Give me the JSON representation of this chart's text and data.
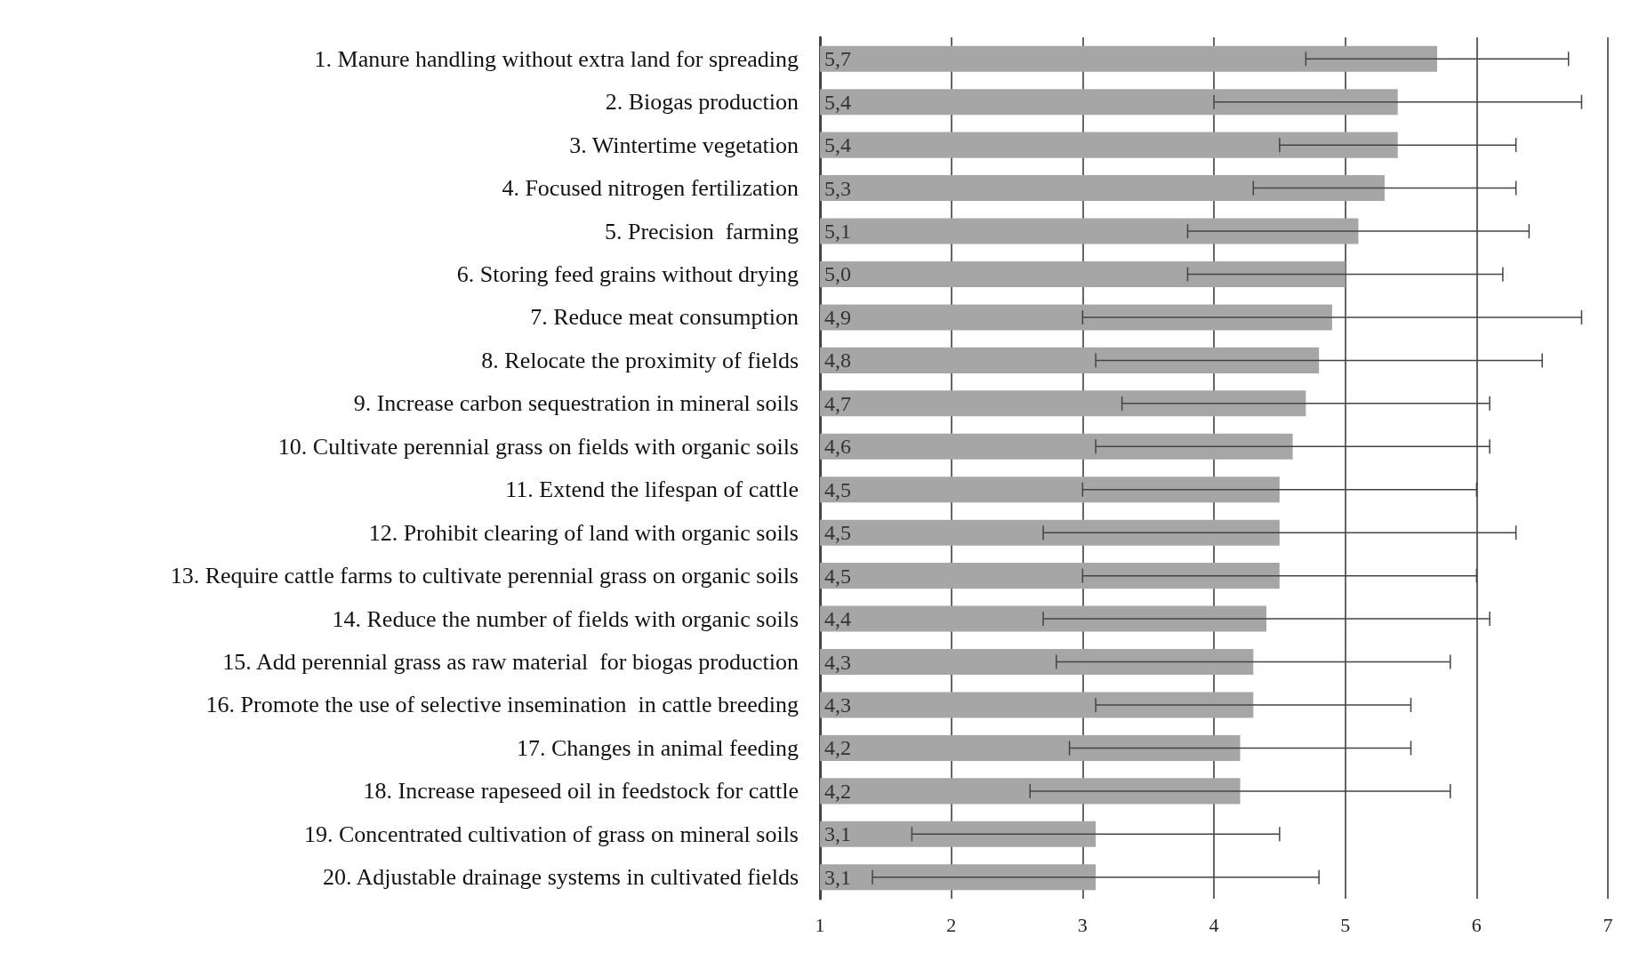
{
  "chart_data": {
    "type": "bar",
    "orientation": "horizontal",
    "color": "#a6a6a6",
    "categories": [
      "1. Manure handling without extra land for spreading",
      "2. Biogas production",
      "3. Wintertime vegetation",
      "4. Focused nitrogen fertilization",
      "5. Precision  farming",
      "6. Storing feed grains without drying",
      "7. Reduce meat consumption",
      "8. Relocate the proximity of fields",
      "9. Increase carbon sequestration in mineral soils",
      "10. Cultivate perennial grass on fields with organic soils",
      "11. Extend the lifespan of cattle",
      "12. Prohibit clearing of land with organic soils",
      "13. Require cattle farms to cultivate perennial grass on organic soils",
      "14. Reduce the number of fields with organic soils",
      "15. Add perennial grass as raw material  for biogas production",
      "16. Promote the use of selective insemination  in cattle breeding",
      "17. Changes in animal feeding",
      "18. Increase rapeseed oil in feedstock for cattle",
      "19. Concentrated cultivation of grass on mineral soils",
      "20. Adjustable drainage systems in cultivated fields"
    ],
    "values": [
      5.7,
      5.4,
      5.4,
      5.3,
      5.1,
      5.0,
      4.9,
      4.8,
      4.7,
      4.6,
      4.5,
      4.5,
      4.5,
      4.4,
      4.3,
      4.3,
      4.2,
      4.2,
      3.1,
      3.1
    ],
    "value_labels": [
      "5,7",
      "5,4",
      "5,4",
      "5,3",
      "5,1",
      "5,0",
      "4,9",
      "4,8",
      "4,7",
      "4,6",
      "4,5",
      "4,5",
      "4,5",
      "4,4",
      "4,3",
      "4,3",
      "4,2",
      "4,2",
      "3,1",
      "3,1"
    ],
    "errors": [
      [
        4.7,
        6.7
      ],
      [
        4.0,
        6.8
      ],
      [
        4.5,
        6.3
      ],
      [
        4.3,
        6.3
      ],
      [
        3.8,
        6.4
      ],
      [
        3.8,
        6.2
      ],
      [
        3.0,
        6.8
      ],
      [
        3.1,
        6.5
      ],
      [
        3.3,
        6.1
      ],
      [
        3.1,
        6.1
      ],
      [
        3.0,
        6.0
      ],
      [
        2.7,
        6.3
      ],
      [
        3.0,
        6.0
      ],
      [
        2.7,
        6.1
      ],
      [
        2.8,
        5.8
      ],
      [
        3.1,
        5.5
      ],
      [
        2.9,
        5.5
      ],
      [
        2.6,
        5.8
      ],
      [
        1.7,
        4.5
      ],
      [
        1.4,
        4.8
      ]
    ],
    "xlim": [
      1,
      7
    ],
    "xticks": [
      1,
      2,
      3,
      4,
      5,
      6,
      7
    ],
    "grid": "x"
  }
}
